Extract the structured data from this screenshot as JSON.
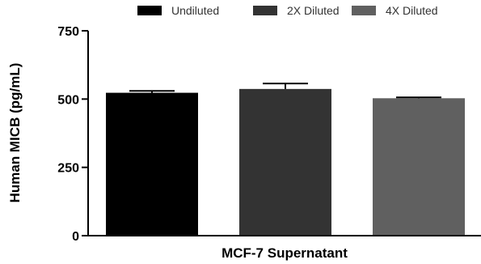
{
  "chart_data": {
    "type": "bar",
    "title": "",
    "xlabel": "MCF-7 Supernatant",
    "ylabel": "Human MICB (pg/mL)",
    "ylim": [
      0,
      750
    ],
    "yticks": [
      0,
      250,
      500,
      750
    ],
    "legend_position": "top",
    "grid": false,
    "series": [
      {
        "name": "Undiluted",
        "value": 523,
        "error": 7,
        "color": "#000000"
      },
      {
        "name": "2X Diluted",
        "value": 537,
        "error": 20,
        "color": "#333333"
      },
      {
        "name": "4X Diluted",
        "value": 503,
        "error": 3,
        "color": "#606060"
      }
    ]
  }
}
